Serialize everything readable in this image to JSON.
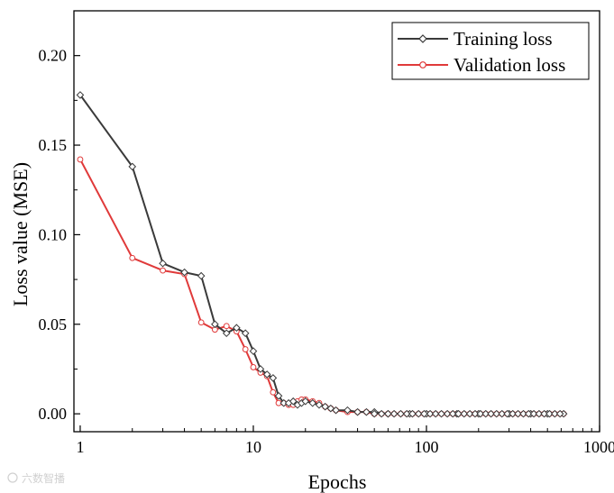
{
  "chart_data": {
    "type": "line",
    "title": "",
    "xlabel": "Epochs",
    "ylabel": "Loss value (MSE)",
    "xscale": "log",
    "xlim": [
      0.92,
      1000
    ],
    "ylim": [
      -0.01,
      0.225
    ],
    "x_ticks": [
      1,
      10,
      100,
      1000
    ],
    "x_tick_labels": [
      "1",
      "10",
      "100",
      "1000"
    ],
    "y_ticks": [
      0.0,
      0.05,
      0.1,
      0.15,
      0.2
    ],
    "y_tick_labels": [
      "0.00",
      "0.05",
      "0.10",
      "0.15",
      "0.20"
    ],
    "legend_position": "top-right",
    "grid": false,
    "series": [
      {
        "name": "Training loss",
        "color": "#3a3a3a",
        "marker": "diamond",
        "points": [
          [
            1,
            0.178
          ],
          [
            2,
            0.138
          ],
          [
            3,
            0.084
          ],
          [
            4,
            0.079
          ],
          [
            5,
            0.077
          ],
          [
            6,
            0.05
          ],
          [
            7,
            0.045
          ],
          [
            8,
            0.048
          ],
          [
            9,
            0.045
          ],
          [
            10,
            0.035
          ],
          [
            11,
            0.025
          ],
          [
            12,
            0.022
          ],
          [
            13,
            0.02
          ],
          [
            14,
            0.01
          ],
          [
            15,
            0.006
          ],
          [
            16,
            0.006
          ],
          [
            17,
            0.007
          ],
          [
            18,
            0.005
          ],
          [
            19,
            0.006
          ],
          [
            20,
            0.007
          ],
          [
            22,
            0.006
          ],
          [
            24,
            0.005
          ],
          [
            26,
            0.004
          ],
          [
            28,
            0.003
          ],
          [
            30,
            0.002
          ],
          [
            35,
            0.002
          ],
          [
            40,
            0.001
          ],
          [
            45,
            0.001
          ],
          [
            50,
            0.001
          ],
          [
            60,
            0.0
          ],
          [
            80,
            0.0
          ],
          [
            100,
            0.0
          ],
          [
            150,
            0.0
          ],
          [
            200,
            0.0
          ],
          [
            300,
            0.0
          ],
          [
            400,
            0.0
          ],
          [
            500,
            0.0
          ],
          [
            620,
            0.0
          ]
        ]
      },
      {
        "name": "Validation loss",
        "color": "#e03a3a",
        "marker": "circle",
        "points": [
          [
            1,
            0.142
          ],
          [
            2,
            0.087
          ],
          [
            3,
            0.08
          ],
          [
            4,
            0.078
          ],
          [
            5,
            0.051
          ],
          [
            6,
            0.047
          ],
          [
            7,
            0.049
          ],
          [
            8,
            0.046
          ],
          [
            9,
            0.036
          ],
          [
            10,
            0.026
          ],
          [
            11,
            0.023
          ],
          [
            12,
            0.021
          ],
          [
            13,
            0.012
          ],
          [
            14,
            0.006
          ],
          [
            15,
            0.006
          ],
          [
            16,
            0.005
          ],
          [
            17,
            0.005
          ],
          [
            18,
            0.007
          ],
          [
            19,
            0.008
          ],
          [
            20,
            0.008
          ],
          [
            22,
            0.007
          ],
          [
            24,
            0.006
          ],
          [
            26,
            0.004
          ],
          [
            28,
            0.003
          ],
          [
            30,
            0.002
          ],
          [
            35,
            0.001
          ],
          [
            40,
            0.001
          ],
          [
            45,
            0.001
          ],
          [
            50,
            0.0
          ],
          [
            60,
            0.0
          ],
          [
            80,
            0.0
          ],
          [
            100,
            0.0
          ],
          [
            150,
            0.0
          ],
          [
            200,
            0.0
          ],
          [
            300,
            0.0
          ],
          [
            400,
            0.0
          ],
          [
            500,
            0.0
          ],
          [
            620,
            0.0
          ]
        ]
      }
    ]
  },
  "watermark": "六数智播"
}
